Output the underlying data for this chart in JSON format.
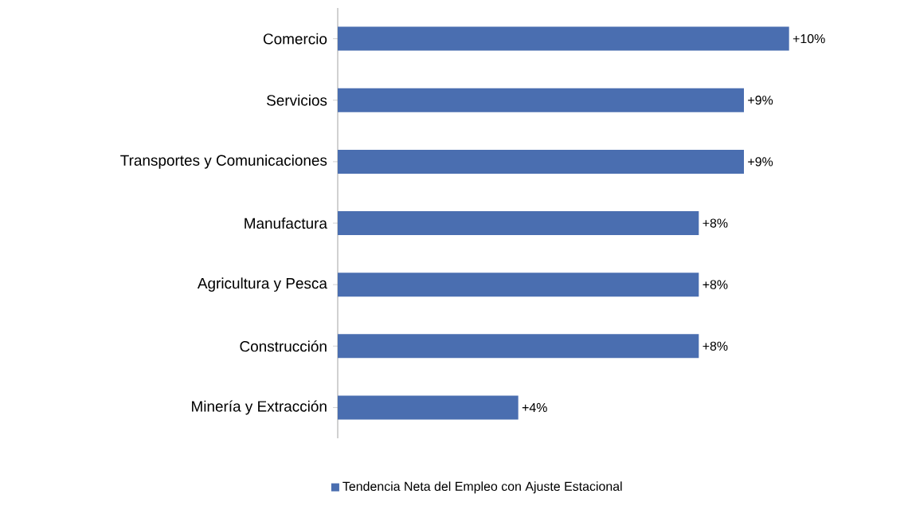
{
  "chart_data": {
    "type": "bar",
    "orientation": "horizontal",
    "categories": [
      "Comercio",
      "Servicios",
      "Transportes y Comunicaciones",
      "Manufactura",
      "Agricultura y Pesca",
      "Construcción",
      "Minería y Extracción"
    ],
    "series": [
      {
        "name": "Tendencia Neta del Empleo con Ajuste Estacional",
        "color": "#4a6eb0",
        "values": [
          10,
          9,
          9,
          8,
          8,
          8,
          4
        ],
        "value_labels": [
          "+10%",
          "+9%",
          "+9%",
          "+8%",
          "+8%",
          "+8%",
          "+4%"
        ]
      }
    ],
    "legend": "bottom"
  }
}
